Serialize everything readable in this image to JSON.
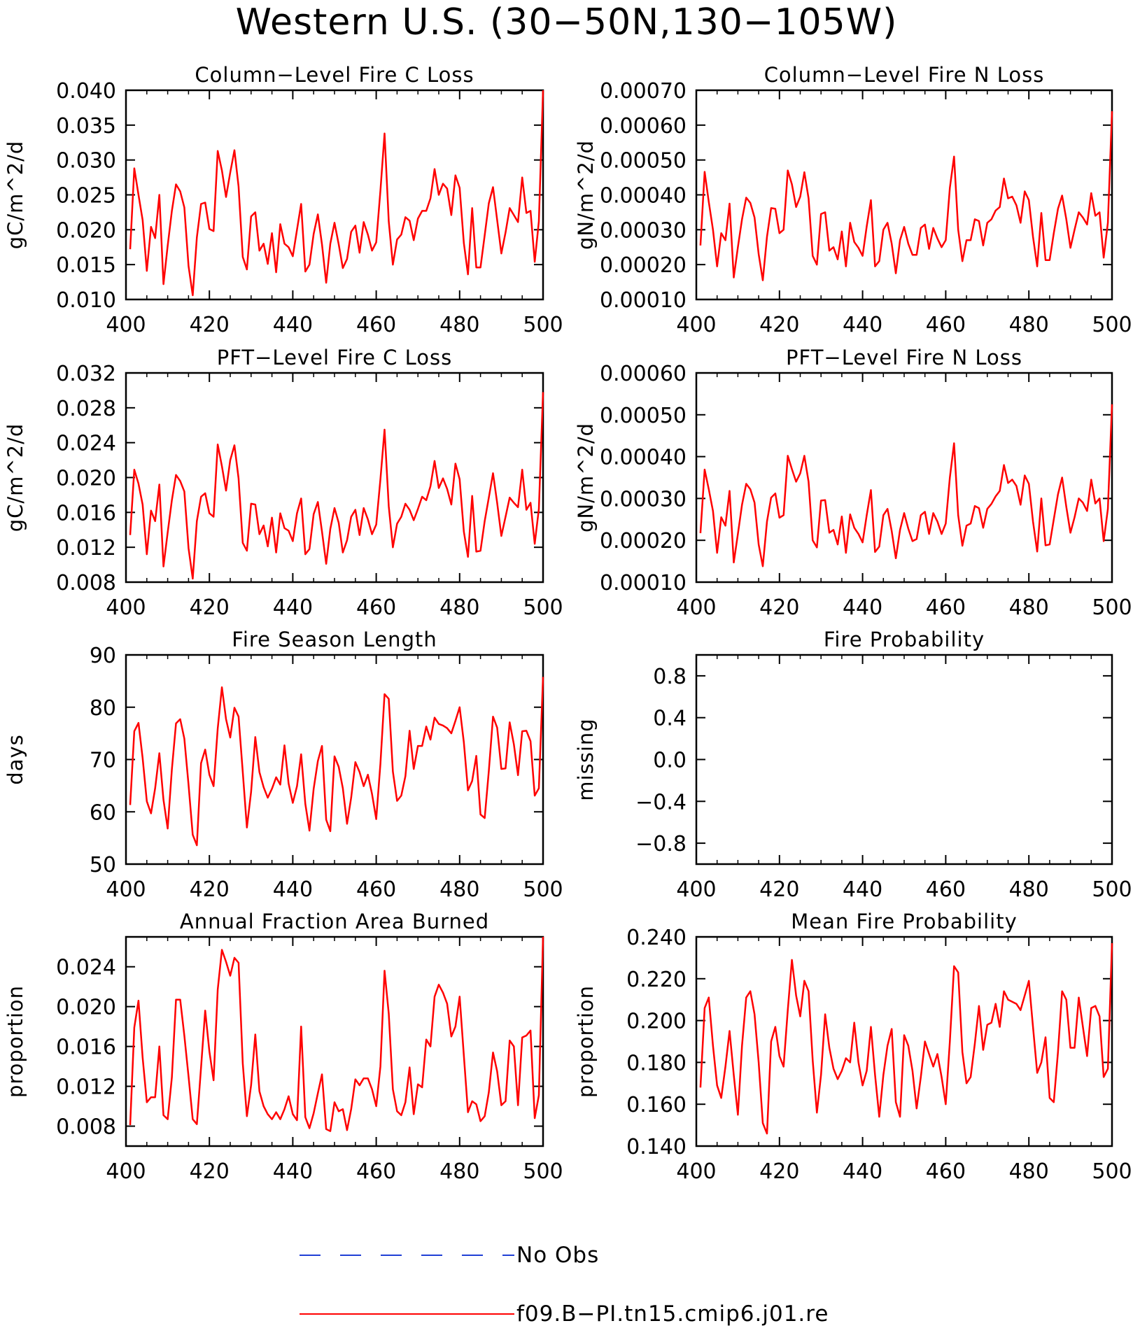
{
  "title": "Western U.S. (30−50N,130−105W)",
  "legend": {
    "entries": [
      {
        "label": "No Obs",
        "color": "#1f3fd6",
        "style": "dashed"
      },
      {
        "label": "f09.B−PI.tn15.cmip6.j01.re",
        "color": "#ff0000",
        "style": "solid"
      }
    ]
  },
  "chart_data": [
    {
      "type": "line",
      "title": "Column−Level Fire C Loss",
      "ylabel": "gC/m^2/d",
      "xlim": [
        400,
        500
      ],
      "ylim": [
        0.01,
        0.04
      ],
      "xticks": [
        400,
        420,
        440,
        460,
        480,
        500
      ],
      "yticks": [
        0.01,
        0.015,
        0.02,
        0.025,
        0.03,
        0.035,
        0.04
      ],
      "ytick_labels": [
        "0.010",
        "0.015",
        "0.020",
        "0.025",
        "0.030",
        "0.035",
        "0.040"
      ],
      "series": [
        {
          "color": "#ff0000",
          "x0": 401,
          "values": [
            0.0172,
            0.0288,
            0.025,
            0.0214,
            0.0141,
            0.0204,
            0.0188,
            0.025,
            0.0122,
            0.0177,
            0.0227,
            0.0265,
            0.0255,
            0.0232,
            0.0148,
            0.0106,
            0.0189,
            0.0237,
            0.0239,
            0.0201,
            0.0198,
            0.0313,
            0.0285,
            0.0247,
            0.0282,
            0.0314,
            0.0262,
            0.0161,
            0.0143,
            0.0219,
            0.0225,
            0.017,
            0.018,
            0.0151,
            0.0195,
            0.0139,
            0.0208,
            0.018,
            0.0175,
            0.0162,
            0.02,
            0.0237,
            0.014,
            0.015,
            0.0194,
            0.0222,
            0.0179,
            0.0124,
            0.018,
            0.021,
            0.0179,
            0.0145,
            0.0158,
            0.0197,
            0.0206,
            0.0167,
            0.0211,
            0.0193,
            0.017,
            0.0182,
            0.0256,
            0.0338,
            0.0212,
            0.015,
            0.0186,
            0.0193,
            0.0218,
            0.0213,
            0.0185,
            0.0216,
            0.0227,
            0.0227,
            0.0245,
            0.0287,
            0.025,
            0.0266,
            0.0259,
            0.0221,
            0.0278,
            0.026,
            0.0181,
            0.0136,
            0.0231,
            0.0146,
            0.0146,
            0.0192,
            0.0238,
            0.0261,
            0.0214,
            0.0166,
            0.0196,
            0.0231,
            0.0221,
            0.0211,
            0.0275,
            0.0224,
            0.0227,
            0.0154,
            0.0212,
            0.04
          ]
        }
      ]
    },
    {
      "type": "line",
      "title": "Column−Level Fire N Loss",
      "ylabel": "gN/m^2/d",
      "xlim": [
        400,
        500
      ],
      "ylim": [
        0.0001,
        0.0007
      ],
      "xticks": [
        400,
        420,
        440,
        460,
        480,
        500
      ],
      "yticks": [
        0.0001,
        0.0002,
        0.0003,
        0.0004,
        0.0005,
        0.0006,
        0.0007
      ],
      "ytick_labels": [
        "0.00010",
        "0.00020",
        "0.00030",
        "0.00040",
        "0.00050",
        "0.00060",
        "0.00070"
      ],
      "series": [
        {
          "color": "#ff0000",
          "x0": 401,
          "values": [
            0.000255,
            0.000466,
            0.00038,
            0.0003,
            0.000195,
            0.00029,
            0.00027,
            0.000375,
            0.000163,
            0.00025,
            0.00033,
            0.000392,
            0.000377,
            0.000335,
            0.00023,
            0.000155,
            0.00028,
            0.000362,
            0.00036,
            0.00029,
            0.0003,
            0.00047,
            0.00043,
            0.000365,
            0.000395,
            0.000465,
            0.00039,
            0.000225,
            0.0002,
            0.000345,
            0.00035,
            0.00024,
            0.00025,
            0.000215,
            0.000295,
            0.000195,
            0.00032,
            0.000265,
            0.000248,
            0.000225,
            0.00031,
            0.000385,
            0.000195,
            0.00021,
            0.0003,
            0.00032,
            0.00026,
            0.000175,
            0.00027,
            0.000308,
            0.00026,
            0.000228,
            0.000228,
            0.000305,
            0.000315,
            0.000245,
            0.000305,
            0.000275,
            0.00025,
            0.00027,
            0.00042,
            0.00051,
            0.0003,
            0.00021,
            0.00027,
            0.00027,
            0.00033,
            0.000325,
            0.000255,
            0.00032,
            0.00033,
            0.000355,
            0.000365,
            0.000447,
            0.00039,
            0.000395,
            0.00037,
            0.00032,
            0.00041,
            0.000385,
            0.00028,
            0.000195,
            0.000348,
            0.000213,
            0.000213,
            0.00029,
            0.00036,
            0.000398,
            0.00033,
            0.000248,
            0.0003,
            0.00035,
            0.000335,
            0.000315,
            0.000405,
            0.00034,
            0.00035,
            0.00022,
            0.00032,
            0.00064
          ]
        }
      ]
    },
    {
      "type": "line",
      "title": "PFT−Level Fire C Loss",
      "ylabel": "gC/m^2/d",
      "xlim": [
        400,
        500
      ],
      "ylim": [
        0.008,
        0.032
      ],
      "xticks": [
        400,
        420,
        440,
        460,
        480,
        500
      ],
      "yticks": [
        0.008,
        0.012,
        0.016,
        0.02,
        0.024,
        0.028,
        0.032
      ],
      "ytick_labels": [
        "0.008",
        "0.012",
        "0.016",
        "0.020",
        "0.024",
        "0.028",
        "0.032"
      ],
      "series": [
        {
          "color": "#ff0000",
          "x0": 401,
          "values": [
            0.0134,
            0.0209,
            0.0193,
            0.0169,
            0.0112,
            0.0162,
            0.015,
            0.0192,
            0.0098,
            0.0137,
            0.0174,
            0.0203,
            0.0196,
            0.0184,
            0.0119,
            0.0084,
            0.015,
            0.0178,
            0.0182,
            0.0159,
            0.0155,
            0.0238,
            0.0213,
            0.0185,
            0.022,
            0.0237,
            0.0199,
            0.0125,
            0.0116,
            0.017,
            0.0169,
            0.0135,
            0.0145,
            0.0121,
            0.0154,
            0.0114,
            0.0159,
            0.0142,
            0.0139,
            0.0127,
            0.0159,
            0.0176,
            0.0112,
            0.0118,
            0.0158,
            0.0172,
            0.0138,
            0.0101,
            0.0141,
            0.0165,
            0.0148,
            0.0114,
            0.0128,
            0.0155,
            0.0163,
            0.0134,
            0.0165,
            0.0152,
            0.0135,
            0.0146,
            0.0198,
            0.0255,
            0.0167,
            0.012,
            0.0147,
            0.0155,
            0.017,
            0.0163,
            0.0151,
            0.0164,
            0.0178,
            0.0174,
            0.019,
            0.0219,
            0.0188,
            0.0199,
            0.0187,
            0.0169,
            0.0216,
            0.0198,
            0.0138,
            0.0109,
            0.0179,
            0.0115,
            0.0116,
            0.015,
            0.0177,
            0.0205,
            0.0171,
            0.0133,
            0.0155,
            0.0177,
            0.0171,
            0.0166,
            0.0209,
            0.0163,
            0.0171,
            0.0124,
            0.0164,
            0.0298
          ]
        }
      ]
    },
    {
      "type": "line",
      "title": "PFT−Level Fire N Loss",
      "ylabel": "gN/m^2/d",
      "xlim": [
        400,
        500
      ],
      "ylim": [
        0.0001,
        0.0006
      ],
      "xticks": [
        400,
        420,
        440,
        460,
        480,
        500
      ],
      "yticks": [
        0.0001,
        0.0002,
        0.0003,
        0.0004,
        0.0005,
        0.0006
      ],
      "ytick_labels": [
        "0.00010",
        "0.00020",
        "0.00030",
        "0.00040",
        "0.00050",
        "0.00060"
      ],
      "series": [
        {
          "color": "#ff0000",
          "x0": 401,
          "values": [
            0.000217,
            0.000369,
            0.000322,
            0.00027,
            0.00017,
            0.000255,
            0.000235,
            0.000318,
            0.000147,
            0.000215,
            0.000285,
            0.000335,
            0.000322,
            0.00029,
            0.00019,
            0.000138,
            0.000245,
            0.000302,
            0.000312,
            0.000254,
            0.00026,
            0.000402,
            0.00037,
            0.00034,
            0.00036,
            0.000402,
            0.00034,
            0.0002,
            0.000183,
            0.000295,
            0.000296,
            0.000218,
            0.000225,
            0.00019,
            0.000257,
            0.00017,
            0.000262,
            0.00023,
            0.000215,
            0.000195,
            0.00026,
            0.00032,
            0.000172,
            0.000185,
            0.00026,
            0.000275,
            0.000222,
            0.000157,
            0.000225,
            0.000265,
            0.000228,
            0.000198,
            0.000203,
            0.00026,
            0.000268,
            0.000215,
            0.000265,
            0.000245,
            0.000215,
            0.00024,
            0.00035,
            0.000432,
            0.00026,
            0.000187,
            0.000235,
            0.00024,
            0.000282,
            0.000277,
            0.00023,
            0.000275,
            0.000287,
            0.000305,
            0.000318,
            0.00038,
            0.000337,
            0.000345,
            0.00033,
            0.000285,
            0.000355,
            0.000335,
            0.000245,
            0.000173,
            0.0003,
            0.000188,
            0.00019,
            0.00025,
            0.00031,
            0.00035,
            0.00028,
            0.000218,
            0.000255,
            0.0003,
            0.00029,
            0.00027,
            0.000345,
            0.000288,
            0.0003,
            0.000198,
            0.000275,
            0.000525
          ]
        }
      ]
    },
    {
      "type": "line",
      "title": "Fire Season Length",
      "ylabel": "days",
      "xlim": [
        400,
        500
      ],
      "ylim": [
        50,
        90
      ],
      "xticks": [
        400,
        420,
        440,
        460,
        480,
        500
      ],
      "yticks": [
        50,
        60,
        70,
        80,
        90
      ],
      "ytick_labels": [
        "50",
        "60",
        "70",
        "80",
        "90"
      ],
      "series": [
        {
          "color": "#ff0000",
          "x0": 401,
          "values": [
            61.3,
            75.4,
            77.0,
            70.3,
            62.0,
            59.7,
            64.5,
            71.2,
            62.3,
            56.8,
            68.1,
            76.9,
            77.7,
            74.0,
            65.2,
            55.6,
            53.6,
            69.3,
            71.9,
            67.1,
            64.9,
            75.9,
            83.8,
            77.7,
            74.2,
            79.9,
            78.2,
            67.6,
            57.0,
            63.8,
            74.3,
            67.6,
            64.7,
            62.7,
            64.4,
            66.6,
            65.2,
            72.7,
            65.4,
            61.7,
            64.9,
            71.0,
            61.5,
            56.4,
            64.4,
            69.7,
            72.6,
            58.5,
            56.3,
            70.6,
            68.6,
            64.5,
            57.7,
            62.7,
            69.5,
            67.6,
            64.9,
            67.1,
            63.4,
            58.6,
            69.2,
            82.5,
            81.6,
            67.7,
            62.1,
            63.1,
            66.8,
            75.5,
            68.2,
            72.6,
            72.6,
            76.3,
            73.8,
            78.0,
            76.8,
            76.5,
            76.0,
            75.0,
            77.4,
            80.0,
            73.3,
            64.1,
            65.9,
            70.7,
            59.5,
            58.8,
            67.8,
            78.2,
            76.1,
            68.2,
            68.3,
            77.1,
            72.9,
            67.0,
            75.4,
            75.5,
            73.5,
            63.1,
            64.5,
            85.8
          ]
        }
      ]
    },
    {
      "type": "line",
      "title": "Fire Probability",
      "ylabel": "missing",
      "xlim": [
        400,
        500
      ],
      "ylim": [
        -1.0,
        1.0
      ],
      "xticks": [
        400,
        420,
        440,
        460,
        480,
        500
      ],
      "yticks": [
        -0.8,
        -0.4,
        0.0,
        0.4,
        0.8
      ],
      "ytick_labels": [
        "−0.8",
        "−0.4",
        "0.0",
        "0.4",
        "0.8"
      ],
      "series": []
    },
    {
      "type": "line",
      "title": "Annual Fraction Area Burned",
      "ylabel": "proportion",
      "xlim": [
        400,
        500
      ],
      "ylim": [
        0.006,
        0.027
      ],
      "xticks": [
        400,
        420,
        440,
        460,
        480,
        500
      ],
      "yticks": [
        0.008,
        0.012,
        0.016,
        0.02,
        0.024
      ],
      "ytick_labels": [
        "0.008",
        "0.012",
        "0.016",
        "0.020",
        "0.024"
      ],
      "series": [
        {
          "color": "#ff0000",
          "x0": 401,
          "values": [
            0.0081,
            0.0179,
            0.0206,
            0.0149,
            0.0104,
            0.0109,
            0.0109,
            0.016,
            0.0091,
            0.0087,
            0.0129,
            0.0207,
            0.0207,
            0.0171,
            0.013,
            0.0087,
            0.0082,
            0.0139,
            0.0196,
            0.0155,
            0.0126,
            0.0217,
            0.0257,
            0.0245,
            0.0231,
            0.0249,
            0.0244,
            0.0143,
            0.009,
            0.0121,
            0.0172,
            0.0115,
            0.01,
            0.0092,
            0.0087,
            0.0094,
            0.0087,
            0.0097,
            0.011,
            0.0092,
            0.0086,
            0.018,
            0.0089,
            0.0078,
            0.0093,
            0.0113,
            0.0132,
            0.0077,
            0.0075,
            0.0104,
            0.0095,
            0.0097,
            0.0076,
            0.0097,
            0.0127,
            0.0121,
            0.0128,
            0.0128,
            0.0117,
            0.01,
            0.014,
            0.0236,
            0.0193,
            0.0117,
            0.0095,
            0.0091,
            0.0104,
            0.0139,
            0.0092,
            0.0122,
            0.0119,
            0.0167,
            0.016,
            0.021,
            0.0222,
            0.0214,
            0.0203,
            0.017,
            0.018,
            0.021,
            0.0151,
            0.0094,
            0.0105,
            0.0102,
            0.0085,
            0.009,
            0.0114,
            0.0154,
            0.0135,
            0.0101,
            0.0105,
            0.0166,
            0.016,
            0.0101,
            0.0169,
            0.0171,
            0.0176,
            0.0088,
            0.0111,
            0.027
          ]
        }
      ]
    },
    {
      "type": "line",
      "title": "Mean Fire Probability",
      "ylabel": "proportion",
      "xlim": [
        400,
        500
      ],
      "ylim": [
        0.14,
        0.24
      ],
      "xticks": [
        400,
        420,
        440,
        460,
        480,
        500
      ],
      "yticks": [
        0.14,
        0.16,
        0.18,
        0.2,
        0.22,
        0.24
      ],
      "ytick_labels": [
        "0.140",
        "0.160",
        "0.180",
        "0.200",
        "0.220",
        "0.240"
      ],
      "series": [
        {
          "color": "#ff0000",
          "x0": 401,
          "values": [
            0.168,
            0.206,
            0.211,
            0.188,
            0.169,
            0.163,
            0.178,
            0.195,
            0.174,
            0.155,
            0.188,
            0.211,
            0.214,
            0.203,
            0.18,
            0.151,
            0.146,
            0.19,
            0.197,
            0.183,
            0.178,
            0.205,
            0.229,
            0.212,
            0.202,
            0.219,
            0.214,
            0.181,
            0.156,
            0.174,
            0.203,
            0.187,
            0.177,
            0.172,
            0.176,
            0.182,
            0.18,
            0.199,
            0.18,
            0.169,
            0.176,
            0.197,
            0.174,
            0.154,
            0.174,
            0.188,
            0.196,
            0.161,
            0.154,
            0.193,
            0.188,
            0.176,
            0.158,
            0.173,
            0.19,
            0.184,
            0.178,
            0.184,
            0.173,
            0.16,
            0.19,
            0.226,
            0.223,
            0.185,
            0.17,
            0.173,
            0.189,
            0.207,
            0.186,
            0.198,
            0.199,
            0.208,
            0.197,
            0.214,
            0.21,
            0.209,
            0.208,
            0.205,
            0.212,
            0.219,
            0.197,
            0.175,
            0.18,
            0.192,
            0.163,
            0.161,
            0.185,
            0.214,
            0.21,
            0.187,
            0.187,
            0.211,
            0.197,
            0.183,
            0.206,
            0.207,
            0.202,
            0.173,
            0.177,
            0.237
          ]
        }
      ]
    }
  ]
}
